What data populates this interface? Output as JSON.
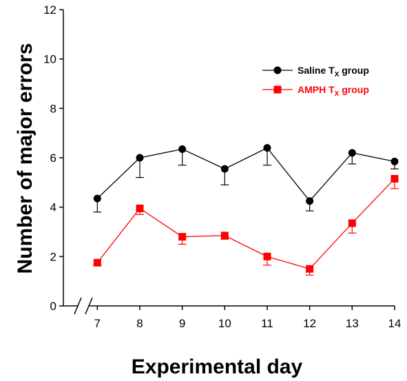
{
  "chart_data": {
    "type": "line",
    "title": "",
    "xlabel": "Experimental day",
    "ylabel": "Number of major errors",
    "x": [
      7,
      8,
      9,
      10,
      11,
      12,
      13,
      14
    ],
    "x_tick_labels": [
      "7",
      "8",
      "9",
      "10",
      "11",
      "12",
      "13",
      "14"
    ],
    "y_ticks": [
      0,
      2,
      4,
      6,
      8,
      10,
      12
    ],
    "y_tick_labels": [
      "0",
      "2",
      "4",
      "6",
      "8",
      "10",
      "12"
    ],
    "ylim": [
      0,
      12
    ],
    "xlim": [
      6.2,
      14
    ],
    "x_axis_break": true,
    "grid": false,
    "legend_position": "top-right",
    "error_bar_direction": "down",
    "series": [
      {
        "name_main": "Saline T",
        "name_sub": "X",
        "name_tail": " group",
        "color": "#000000",
        "marker": "circle",
        "values": [
          4.35,
          6.0,
          6.35,
          5.55,
          6.4,
          4.25,
          6.2,
          5.85
        ],
        "errors": [
          0.55,
          0.8,
          0.65,
          0.65,
          0.7,
          0.4,
          0.45,
          0.3
        ]
      },
      {
        "name_main": "AMPH T",
        "name_sub": "X",
        "name_tail": " group",
        "color": "#ff0000",
        "marker": "square",
        "values": [
          1.75,
          3.95,
          2.8,
          2.85,
          2.0,
          1.5,
          3.35,
          5.15
        ],
        "errors": [
          0.1,
          0.25,
          0.3,
          0.15,
          0.35,
          0.25,
          0.4,
          0.4
        ]
      }
    ]
  }
}
